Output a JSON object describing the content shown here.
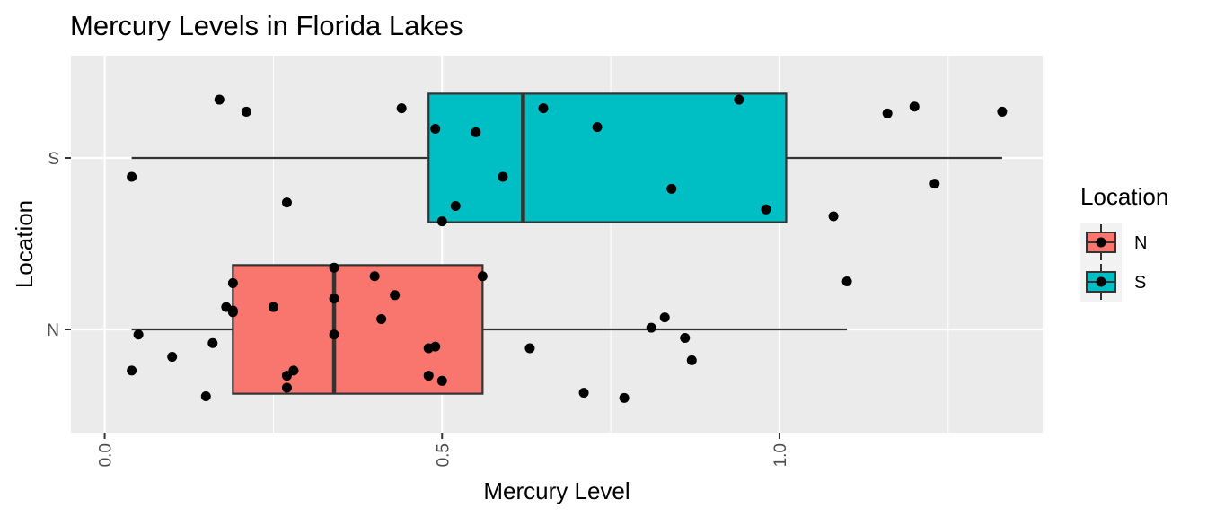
{
  "chart_data": {
    "type": "boxplot",
    "title": "Mercury Levels in Florida Lakes",
    "xlabel": "Mercury Level",
    "ylabel": "Location",
    "xlim": [
      -0.05,
      1.39
    ],
    "x_ticks": [
      0.0,
      0.5,
      1.0
    ],
    "x_tick_labels": [
      "0.0",
      "0.5",
      "1.0"
    ],
    "categories": [
      "N",
      "S"
    ],
    "grid": true,
    "legend": {
      "title": "Location",
      "position": "right",
      "entries": [
        {
          "label": "N",
          "color": "#F8766D"
        },
        {
          "label": "S",
          "color": "#00BFC4"
        }
      ]
    },
    "boxes": [
      {
        "category": "N",
        "color": "#F8766D",
        "whisker_low": 0.04,
        "q1": 0.19,
        "median": 0.34,
        "q3": 0.56,
        "whisker_high": 1.1
      },
      {
        "category": "S",
        "color": "#00BFC4",
        "whisker_low": 0.04,
        "q1": 0.48,
        "median": 0.62,
        "q3": 1.01,
        "whisker_high": 1.33
      }
    ],
    "points": [
      {
        "category": "N",
        "x": 0.04,
        "jitter": -0.24
      },
      {
        "category": "N",
        "x": 0.05,
        "jitter": -0.03
      },
      {
        "category": "N",
        "x": 0.1,
        "jitter": -0.16
      },
      {
        "category": "N",
        "x": 0.15,
        "jitter": -0.39
      },
      {
        "category": "N",
        "x": 0.16,
        "jitter": -0.08
      },
      {
        "category": "N",
        "x": 0.18,
        "jitter": 0.13
      },
      {
        "category": "N",
        "x": 0.19,
        "jitter": 0.27
      },
      {
        "category": "N",
        "x": 0.19,
        "jitter": 0.11
      },
      {
        "category": "N",
        "x": 0.19,
        "jitter": 0.1
      },
      {
        "category": "N",
        "x": 0.25,
        "jitter": 0.13
      },
      {
        "category": "N",
        "x": 0.27,
        "jitter": -0.34
      },
      {
        "category": "N",
        "x": 0.27,
        "jitter": -0.27
      },
      {
        "category": "N",
        "x": 0.28,
        "jitter": -0.24
      },
      {
        "category": "N",
        "x": 0.34,
        "jitter": 0.36
      },
      {
        "category": "N",
        "x": 0.34,
        "jitter": 0.18
      },
      {
        "category": "N",
        "x": 0.34,
        "jitter": -0.03
      },
      {
        "category": "N",
        "x": 0.4,
        "jitter": 0.31
      },
      {
        "category": "N",
        "x": 0.41,
        "jitter": 0.06
      },
      {
        "category": "N",
        "x": 0.43,
        "jitter": 0.2
      },
      {
        "category": "N",
        "x": 0.48,
        "jitter": -0.11
      },
      {
        "category": "N",
        "x": 0.49,
        "jitter": -0.1
      },
      {
        "category": "N",
        "x": 0.48,
        "jitter": -0.27
      },
      {
        "category": "N",
        "x": 0.5,
        "jitter": -0.3
      },
      {
        "category": "N",
        "x": 0.56,
        "jitter": 0.31
      },
      {
        "category": "N",
        "x": 0.63,
        "jitter": -0.11
      },
      {
        "category": "N",
        "x": 0.71,
        "jitter": -0.37
      },
      {
        "category": "N",
        "x": 0.77,
        "jitter": -0.4
      },
      {
        "category": "N",
        "x": 0.81,
        "jitter": 0.01
      },
      {
        "category": "N",
        "x": 0.83,
        "jitter": 0.07
      },
      {
        "category": "N",
        "x": 0.86,
        "jitter": -0.05
      },
      {
        "category": "N",
        "x": 0.87,
        "jitter": -0.18
      },
      {
        "category": "N",
        "x": 1.1,
        "jitter": 0.28
      },
      {
        "category": "S",
        "x": 0.04,
        "jitter": -0.11
      },
      {
        "category": "S",
        "x": 0.17,
        "jitter": 0.34
      },
      {
        "category": "S",
        "x": 0.21,
        "jitter": 0.27
      },
      {
        "category": "S",
        "x": 0.27,
        "jitter": -0.26
      },
      {
        "category": "S",
        "x": 0.44,
        "jitter": 0.29
      },
      {
        "category": "S",
        "x": 0.49,
        "jitter": 0.17
      },
      {
        "category": "S",
        "x": 0.5,
        "jitter": -0.37
      },
      {
        "category": "S",
        "x": 0.52,
        "jitter": -0.28
      },
      {
        "category": "S",
        "x": 0.55,
        "jitter": 0.15
      },
      {
        "category": "S",
        "x": 0.59,
        "jitter": -0.11
      },
      {
        "category": "S",
        "x": 0.65,
        "jitter": 0.29
      },
      {
        "category": "S",
        "x": 0.73,
        "jitter": 0.18
      },
      {
        "category": "S",
        "x": 0.84,
        "jitter": -0.18
      },
      {
        "category": "S",
        "x": 0.94,
        "jitter": 0.34
      },
      {
        "category": "S",
        "x": 0.98,
        "jitter": -0.3
      },
      {
        "category": "S",
        "x": 1.08,
        "jitter": -0.34
      },
      {
        "category": "S",
        "x": 1.16,
        "jitter": 0.26
      },
      {
        "category": "S",
        "x": 1.2,
        "jitter": 0.3
      },
      {
        "category": "S",
        "x": 1.23,
        "jitter": -0.15
      },
      {
        "category": "S",
        "x": 1.33,
        "jitter": 0.27
      }
    ]
  }
}
